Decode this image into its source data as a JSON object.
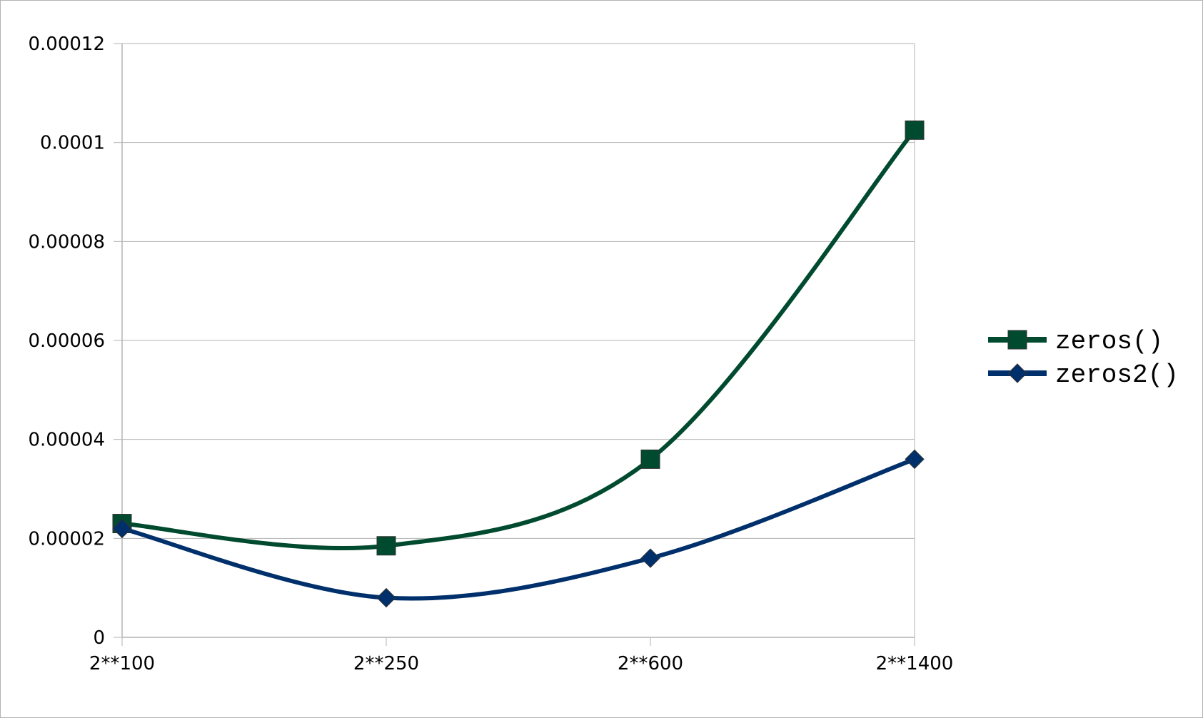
{
  "chart_data": {
    "type": "line",
    "title": "",
    "xlabel": "",
    "ylabel": "",
    "categories": [
      "2**100",
      "2**250",
      "2**600",
      "2**1400"
    ],
    "y_ticks": [
      "0",
      "0.00002",
      "0.00004",
      "0.00006",
      "0.00008",
      "0.0001",
      "0.00012"
    ],
    "y_tick_values": [
      0,
      2e-05,
      4e-05,
      6e-05,
      8e-05,
      0.0001,
      0.00012
    ],
    "ylim": [
      0,
      0.00012
    ],
    "grid": true,
    "legend_position": "right",
    "smooth": true,
    "series": [
      {
        "name": "zeros()",
        "values": [
          2.3e-05,
          1.85e-05,
          3.6e-05,
          0.0001025
        ],
        "color": "#004a2f",
        "marker": "square"
      },
      {
        "name": "zeros2()",
        "values": [
          2.2e-05,
          8e-06,
          1.6e-05,
          3.6e-05
        ],
        "color": "#00306b",
        "marker": "diamond"
      }
    ]
  }
}
